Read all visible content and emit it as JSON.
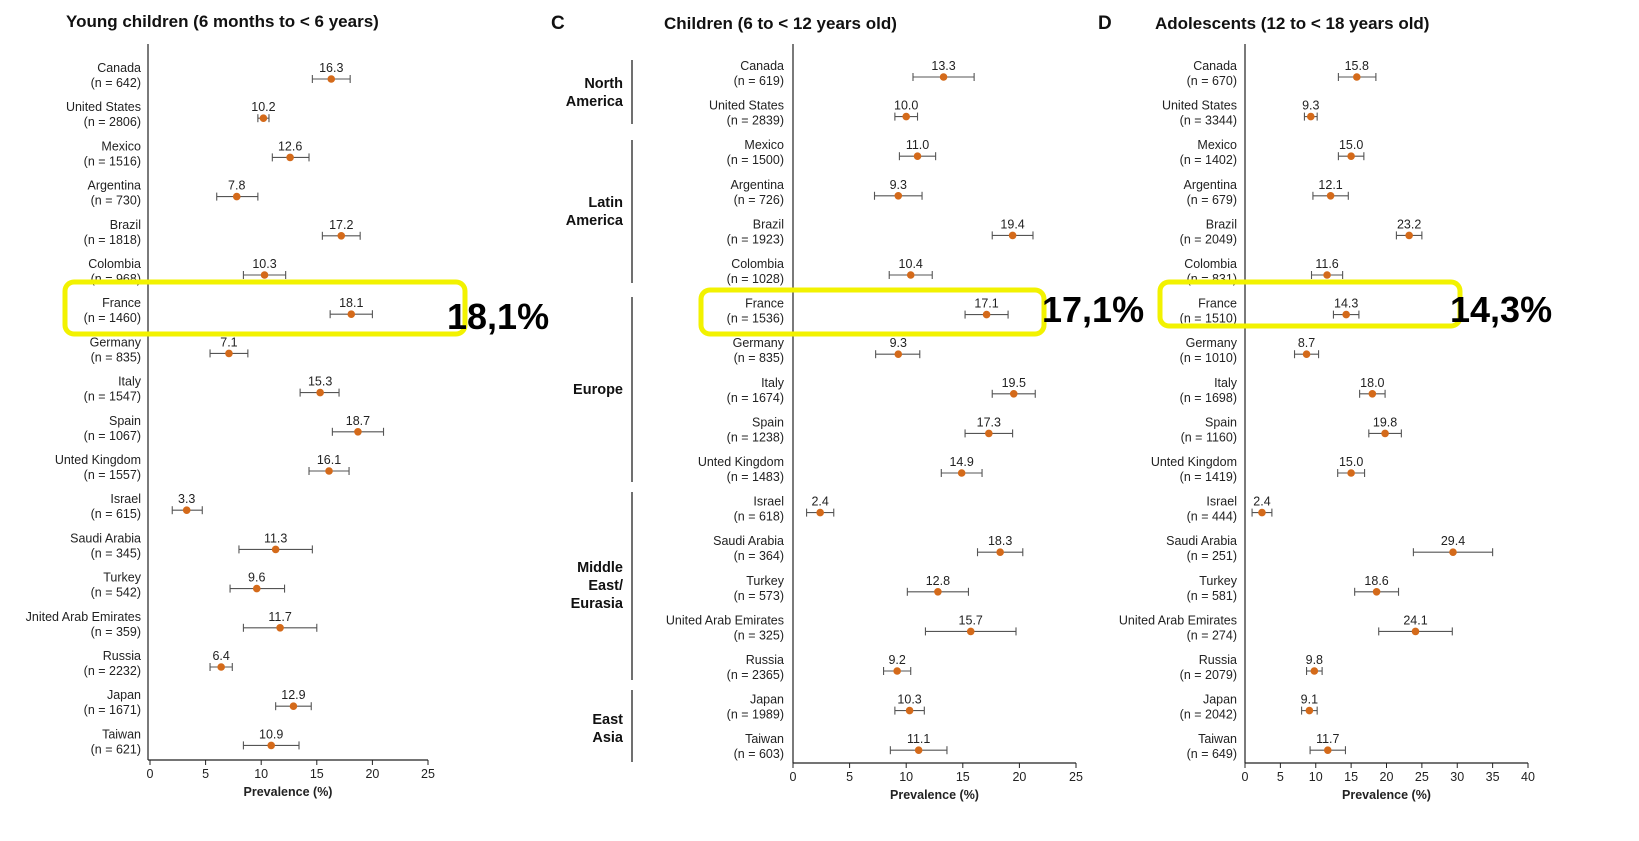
{
  "chart_data": [
    {
      "type": "scatter",
      "title": "Young children (6 months to < 6 years)",
      "panel_letter": "",
      "xlabel": "Prevalence (%)",
      "xlim": [
        0,
        25
      ],
      "xticks": [
        0,
        5,
        10,
        15,
        20,
        25
      ],
      "marker_color": "#d46a1a",
      "callout": "18,1%",
      "highlight": "France",
      "points": [
        {
          "country": "Canada",
          "n": "(n = 642)",
          "value": 16.3,
          "label": "16.3",
          "ci": [
            14.6,
            18.0
          ]
        },
        {
          "country": "United States",
          "n": "(n = 2806)",
          "value": 10.2,
          "label": "10.2",
          "ci": [
            9.7,
            10.7
          ]
        },
        {
          "country": "Mexico",
          "n": "(n = 1516)",
          "value": 12.6,
          "label": "12.6",
          "ci": [
            11.0,
            14.3
          ]
        },
        {
          "country": "Argentina",
          "n": "(n = 730)",
          "value": 7.8,
          "label": "7.8",
          "ci": [
            6.0,
            9.7
          ]
        },
        {
          "country": "Brazil",
          "n": "(n = 1818)",
          "value": 17.2,
          "label": "17.2",
          "ci": [
            15.5,
            18.9
          ]
        },
        {
          "country": "Colombia",
          "n": "(n = 968)",
          "value": 10.3,
          "label": "10.3",
          "ci": [
            8.4,
            12.2
          ]
        },
        {
          "country": "France",
          "n": "(n = 1460)",
          "value": 18.1,
          "label": "18.1",
          "ci": [
            16.2,
            20.0
          ]
        },
        {
          "country": "Germany",
          "n": "(n = 835)",
          "value": 7.1,
          "label": "7.1",
          "ci": [
            5.4,
            8.8
          ]
        },
        {
          "country": "Italy",
          "n": "(n = 1547)",
          "value": 15.3,
          "label": "15.3",
          "ci": [
            13.5,
            17.0
          ]
        },
        {
          "country": "Spain",
          "n": "(n = 1067)",
          "value": 18.7,
          "label": "18.7",
          "ci": [
            16.4,
            21.0
          ]
        },
        {
          "country": "Unted Kingdom",
          "n": "(n = 1557)",
          "value": 16.1,
          "label": "16.1",
          "ci": [
            14.3,
            17.9
          ]
        },
        {
          "country": "Israel",
          "n": "(n = 615)",
          "value": 3.3,
          "label": "3.3",
          "ci": [
            2.0,
            4.7
          ]
        },
        {
          "country": "Saudi Arabia",
          "n": "(n = 345)",
          "value": 11.3,
          "label": "11.3",
          "ci": [
            8.0,
            14.6
          ]
        },
        {
          "country": "Turkey",
          "n": "(n = 542)",
          "value": 9.6,
          "label": "9.6",
          "ci": [
            7.2,
            12.1
          ]
        },
        {
          "country": "Jnited Arab Emirates",
          "n": "(n = 359)",
          "value": 11.7,
          "label": "11.7",
          "ci": [
            8.4,
            15.0
          ]
        },
        {
          "country": "Russia",
          "n": "(n = 2232)",
          "value": 6.4,
          "label": "6.4",
          "ci": [
            5.4,
            7.4
          ]
        },
        {
          "country": "Japan",
          "n": "(n = 1671)",
          "value": 12.9,
          "label": "12.9",
          "ci": [
            11.3,
            14.5
          ]
        },
        {
          "country": "Taiwan",
          "n": "(n = 621)",
          "value": 10.9,
          "label": "10.9",
          "ci": [
            8.4,
            13.4
          ]
        }
      ]
    },
    {
      "type": "scatter",
      "title": "Children (6 to < 12 years old)",
      "panel_letter": "C",
      "xlabel": "Prevalence (%)",
      "xlim": [
        0,
        25
      ],
      "xticks": [
        0,
        5,
        10,
        15,
        20,
        25
      ],
      "marker_color": "#d46a1a",
      "callout": "17,1%",
      "highlight": "France",
      "regions": [
        {
          "name": "North America",
          "lines": [
            "North",
            "America"
          ]
        },
        {
          "name": "Latin America",
          "lines": [
            "Latin",
            "America"
          ]
        },
        {
          "name": "Europe",
          "lines": [
            "Europe"
          ]
        },
        {
          "name": "Middle East/Eurasia",
          "lines": [
            "Middle",
            "East/",
            "Eurasia"
          ]
        },
        {
          "name": "East Asia",
          "lines": [
            "East",
            "Asia"
          ]
        }
      ],
      "points": [
        {
          "country": "Canada",
          "n": "(n = 619)",
          "value": 13.3,
          "label": "13.3",
          "ci": [
            10.6,
            16.0
          ]
        },
        {
          "country": "United States",
          "n": "(n = 2839)",
          "value": 10.0,
          "label": "10.0",
          "ci": [
            9.0,
            11.0
          ]
        },
        {
          "country": "Mexico",
          "n": "(n = 1500)",
          "value": 11.0,
          "label": "11.0",
          "ci": [
            9.4,
            12.6
          ]
        },
        {
          "country": "Argentina",
          "n": "(n = 726)",
          "value": 9.3,
          "label": "9.3",
          "ci": [
            7.2,
            11.4
          ]
        },
        {
          "country": "Brazil",
          "n": "(n = 1923)",
          "value": 19.4,
          "label": "19.4",
          "ci": [
            17.6,
            21.2
          ]
        },
        {
          "country": "Colombia",
          "n": "(n = 1028)",
          "value": 10.4,
          "label": "10.4",
          "ci": [
            8.5,
            12.3
          ]
        },
        {
          "country": "France",
          "n": "(n = 1536)",
          "value": 17.1,
          "label": "17.1",
          "ci": [
            15.2,
            19.0
          ]
        },
        {
          "country": "Germany",
          "n": "(n = 835)",
          "value": 9.3,
          "label": "9.3",
          "ci": [
            7.3,
            11.2
          ]
        },
        {
          "country": "Italy",
          "n": "(n = 1674)",
          "value": 19.5,
          "label": "19.5",
          "ci": [
            17.6,
            21.4
          ]
        },
        {
          "country": "Spain",
          "n": "(n = 1238)",
          "value": 17.3,
          "label": "17.3",
          "ci": [
            15.2,
            19.4
          ]
        },
        {
          "country": "Unted Kingdom",
          "n": "(n = 1483)",
          "value": 14.9,
          "label": "14.9",
          "ci": [
            13.1,
            16.7
          ]
        },
        {
          "country": "Israel",
          "n": "(n = 618)",
          "value": 2.4,
          "label": "2.4",
          "ci": [
            1.2,
            3.6
          ]
        },
        {
          "country": "Saudi Arabia",
          "n": "(n = 364)",
          "value": 18.3,
          "label": "18.3",
          "ci": [
            16.3,
            20.3
          ]
        },
        {
          "country": "Turkey",
          "n": "(n = 573)",
          "value": 12.8,
          "label": "12.8",
          "ci": [
            10.1,
            15.5
          ]
        },
        {
          "country": "United Arab Emirates",
          "n": "(n = 325)",
          "value": 15.7,
          "label": "15.7",
          "ci": [
            11.7,
            19.7
          ]
        },
        {
          "country": "Russia",
          "n": "(n = 2365)",
          "value": 9.2,
          "label": "9.2",
          "ci": [
            8.0,
            10.4
          ]
        },
        {
          "country": "Japan",
          "n": "(n = 1989)",
          "value": 10.3,
          "label": "10.3",
          "ci": [
            9.0,
            11.6
          ]
        },
        {
          "country": "Taiwan",
          "n": "(n = 603)",
          "value": 11.1,
          "label": "11.1",
          "ci": [
            8.6,
            13.6
          ]
        }
      ]
    },
    {
      "type": "scatter",
      "title": "Adolescents (12 to < 18 years old)",
      "panel_letter": "D",
      "xlabel": "Prevalence (%)",
      "xlim": [
        0,
        40
      ],
      "xticks": [
        0,
        5,
        10,
        15,
        20,
        25,
        30,
        35,
        40
      ],
      "marker_color": "#d46a1a",
      "callout": "14,3%",
      "highlight": "France",
      "points": [
        {
          "country": "Canada",
          "n": "(n = 670)",
          "value": 15.8,
          "label": "15.8",
          "ci": [
            13.2,
            18.5
          ]
        },
        {
          "country": "United States",
          "n": "(n = 3344)",
          "value": 9.3,
          "label": "9.3",
          "ci": [
            8.4,
            10.2
          ]
        },
        {
          "country": "Mexico",
          "n": "(n = 1402)",
          "value": 15.0,
          "label": "15.0",
          "ci": [
            13.2,
            16.8
          ]
        },
        {
          "country": "Argentina",
          "n": "(n = 679)",
          "value": 12.1,
          "label": "12.1",
          "ci": [
            9.6,
            14.6
          ]
        },
        {
          "country": "Brazil",
          "n": "(n = 2049)",
          "value": 23.2,
          "label": "23.2",
          "ci": [
            21.4,
            25.0
          ]
        },
        {
          "country": "Colombia",
          "n": "(n = 831)",
          "value": 11.6,
          "label": "11.6",
          "ci": [
            9.4,
            13.8
          ]
        },
        {
          "country": "France",
          "n": "(n = 1510)",
          "value": 14.3,
          "label": "14.3",
          "ci": [
            12.5,
            16.1
          ]
        },
        {
          "country": "Germany",
          "n": "(n = 1010)",
          "value": 8.7,
          "label": "8.7",
          "ci": [
            7.0,
            10.4
          ]
        },
        {
          "country": "Italy",
          "n": "(n = 1698)",
          "value": 18.0,
          "label": "18.0",
          "ci": [
            16.2,
            19.8
          ]
        },
        {
          "country": "Spain",
          "n": "(n = 1160)",
          "value": 19.8,
          "label": "19.8",
          "ci": [
            17.5,
            22.1
          ]
        },
        {
          "country": "Unted Kingdom",
          "n": "(n = 1419)",
          "value": 15.0,
          "label": "15.0",
          "ci": [
            13.1,
            16.9
          ]
        },
        {
          "country": "Israel",
          "n": "(n = 444)",
          "value": 2.4,
          "label": "2.4",
          "ci": [
            1.0,
            3.8
          ]
        },
        {
          "country": "Saudi Arabia",
          "n": "(n = 251)",
          "value": 29.4,
          "label": "29.4",
          "ci": [
            23.8,
            35.0
          ]
        },
        {
          "country": "Turkey",
          "n": "(n = 581)",
          "value": 18.6,
          "label": "18.6",
          "ci": [
            15.5,
            21.7
          ]
        },
        {
          "country": "United Arab Emirates",
          "n": "(n = 274)",
          "value": 24.1,
          "label": "24.1",
          "ci": [
            18.9,
            29.3
          ]
        },
        {
          "country": "Russia",
          "n": "(n = 2079)",
          "value": 9.8,
          "label": "9.8",
          "ci": [
            8.7,
            10.9
          ]
        },
        {
          "country": "Japan",
          "n": "(n = 2042)",
          "value": 9.1,
          "label": "9.1",
          "ci": [
            8.0,
            10.2
          ]
        },
        {
          "country": "Taiwan",
          "n": "(n = 649)",
          "value": 11.7,
          "label": "11.7",
          "ci": [
            9.2,
            14.2
          ]
        }
      ]
    }
  ]
}
